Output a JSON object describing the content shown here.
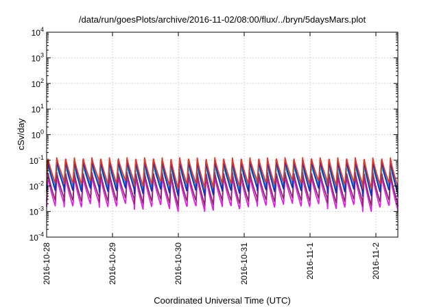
{
  "chart_data": {
    "type": "line",
    "title": "/data/run/goesPlots/archive/2016-11-02/08:00/flux/../bryn/5daysMars.plot",
    "xlabel": "Coordinated Universal Time (UTC)",
    "ylabel": "cSv/day",
    "y_scale": "log",
    "ylim": [
      0.0001,
      10000
    ],
    "y_ticks": [
      {
        "base": "10",
        "exp": "-4"
      },
      {
        "base": "10",
        "exp": "-3"
      },
      {
        "base": "10",
        "exp": "-2"
      },
      {
        "base": "10",
        "exp": "-1"
      },
      {
        "base": "10",
        "exp": "0"
      },
      {
        "base": "10",
        "exp": "1"
      },
      {
        "base": "10",
        "exp": "2"
      },
      {
        "base": "10",
        "exp": "3"
      },
      {
        "base": "10",
        "exp": "4"
      }
    ],
    "xlim": [
      "2016-10-28T00:00",
      "2016-11-02T08:00"
    ],
    "x_tick_labels": [
      "2016-10-28",
      "2016-10-29",
      "2016-10-30",
      "2016-10-31",
      "2016-11-1",
      "2016-11-2"
    ],
    "grid": true,
    "legend": "none",
    "series": [
      {
        "color": "#e03a2a",
        "peak": 0.13,
        "trough": 0.012
      },
      {
        "color": "#1530b8",
        "peak": 0.1,
        "trough": 0.006
      },
      {
        "color": "#2aa0e8",
        "peak": 0.09,
        "trough": 0.009
      },
      {
        "color": "#40d0c8",
        "peak": 0.06,
        "trough": 0.008
      },
      {
        "color": "#8a2a6a",
        "peak": 0.035,
        "trough": 0.0025
      },
      {
        "color": "#e020e0",
        "peak": 0.025,
        "trough": 0.0015
      }
    ],
    "oscillation": {
      "cycles_per_day": 7.5,
      "rise_fraction": 0.15,
      "note_peak_range": [
        0.1,
        0.13
      ],
      "note_trough_range": [
        0.001,
        0.02
      ]
    }
  }
}
